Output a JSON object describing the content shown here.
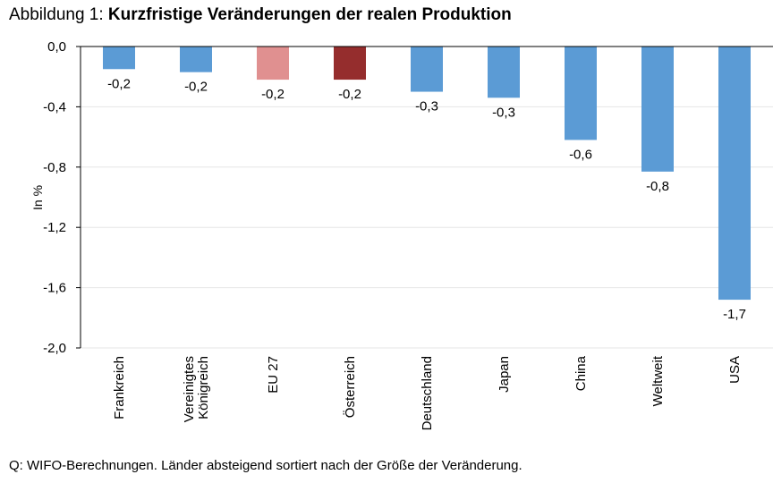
{
  "figure": {
    "title_prefix": "Abbildung 1: ",
    "title_main": "Kurzfristige Veränderungen der realen Produktion",
    "source": "Q: WIFO-Berechnungen. Länder absteigend sortiert nach der Größe der Veränderung."
  },
  "chart_data": {
    "type": "bar",
    "title": "Kurzfristige Veränderungen der realen Produktion",
    "ylabel": "In %",
    "xlabel": "",
    "ylim": [
      -2.0,
      0.0
    ],
    "yticks": [
      "0,0",
      "-0,4",
      "-0,8",
      "-1,2",
      "-1,6",
      "-2,0"
    ],
    "ytick_values": [
      0.0,
      -0.4,
      -0.8,
      -1.2,
      -1.6,
      -2.0
    ],
    "grid": true,
    "categories": [
      [
        "Frankreich"
      ],
      [
        "Vereinigtes",
        "Königreich"
      ],
      [
        "EU 27"
      ],
      [
        "Österreich"
      ],
      [
        "Deutschland"
      ],
      [
        "Japan"
      ],
      [
        "China"
      ],
      [
        "Weltweit"
      ],
      [
        "USA"
      ]
    ],
    "values": [
      -0.15,
      -0.17,
      -0.22,
      -0.22,
      -0.3,
      -0.34,
      -0.62,
      -0.83,
      -1.68
    ],
    "data_labels": [
      "-0,2",
      "-0,2",
      "-0,2",
      "-0,2",
      "-0,3",
      "-0,3",
      "-0,6",
      "-0,8",
      "-1,7"
    ],
    "colors": [
      "#5b9bd5",
      "#5b9bd5",
      "#e09090",
      "#952d2d",
      "#5b9bd5",
      "#5b9bd5",
      "#5b9bd5",
      "#5b9bd5",
      "#5b9bd5"
    ]
  }
}
